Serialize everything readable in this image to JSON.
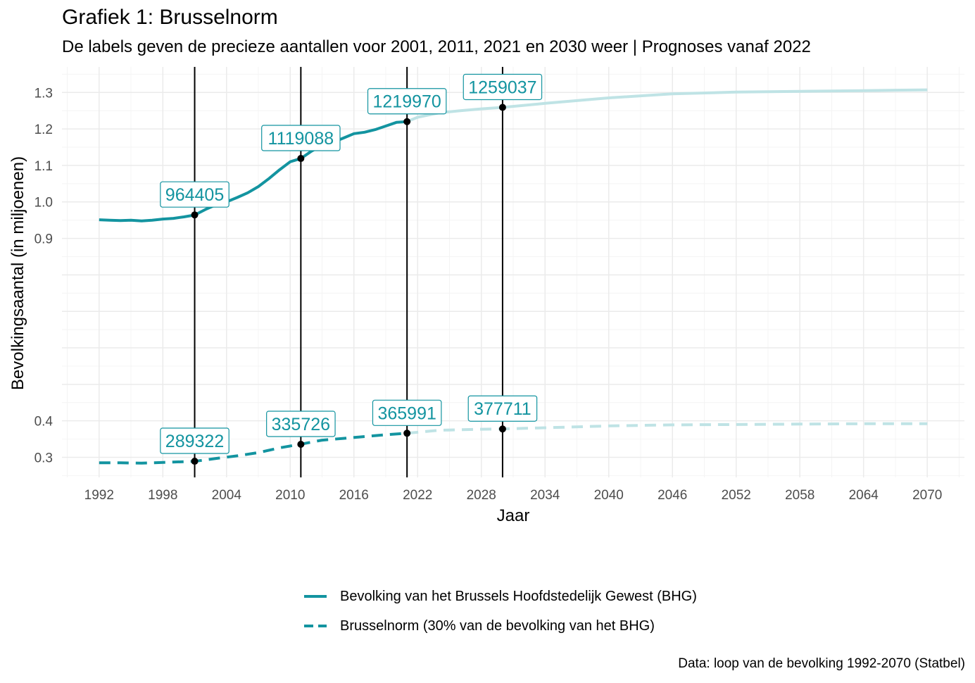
{
  "colors": {
    "series": "#1394a0",
    "forecast": "#bfe3e5",
    "markers": "#000000",
    "grid_major": "#ebebeb",
    "grid_minor": "#f4f4f4",
    "axis_text": "#4d4d4d"
  },
  "chart_data": {
    "type": "line",
    "title": "Grafiek 1: Brusselnorm",
    "subtitle": "De labels geven de precieze aantallen voor 2001, 2011, 2021 en 2030 weer | Prognoses vanaf 2022",
    "xlabel": "Jaar",
    "ylabel": "Bevolkingsaantal (in miljoenen)",
    "caption": "Data: loop van de bevolking 1992-2070 (Statbel)",
    "xlim": [
      1988.5,
      2073.5
    ],
    "ylim": [
      0.245,
      1.37
    ],
    "x_ticks": [
      1992,
      1998,
      2004,
      2010,
      2016,
      2022,
      2028,
      2034,
      2040,
      2046,
      2052,
      2058,
      2064,
      2070
    ],
    "x_tick_labels": [
      "1992",
      "1998",
      "2004",
      "2010",
      "2016",
      "2022",
      "2028",
      "2034",
      "2040",
      "2046",
      "2052",
      "2058",
      "2064",
      "2070"
    ],
    "y_ticks": [
      0.3,
      0.4,
      0.9,
      1.0,
      1.1,
      1.2,
      1.3
    ],
    "y_tick_labels": [
      "0.3",
      "0.4",
      "0.9",
      "1.0",
      "1.1",
      "1.2",
      "1.3"
    ],
    "grid": true,
    "legend_position": "bottom",
    "vlines": [
      2001,
      2011,
      2021,
      2030
    ],
    "series": [
      {
        "name": "Bevolking van het Brussels Hoofdstedelijk Gewest (BHG)",
        "dash": "solid",
        "observed": {
          "x": [
            1992,
            1993,
            1994,
            1995,
            1996,
            1997,
            1998,
            1999,
            2000,
            2001,
            2002,
            2003,
            2004,
            2005,
            2006,
            2007,
            2008,
            2009,
            2010,
            2011,
            2012,
            2013,
            2014,
            2015,
            2016,
            2017,
            2018,
            2019,
            2020,
            2021
          ],
          "y": [
            0.951,
            0.95,
            0.949,
            0.95,
            0.948,
            0.95,
            0.953,
            0.955,
            0.959,
            0.964,
            0.979,
            0.992,
            1.0,
            1.012,
            1.025,
            1.042,
            1.064,
            1.088,
            1.11,
            1.119,
            1.139,
            1.155,
            1.163,
            1.175,
            1.187,
            1.191,
            1.198,
            1.208,
            1.218,
            1.22
          ]
        },
        "forecast": {
          "x": [
            2021,
            2022,
            2024,
            2026,
            2028,
            2030,
            2034,
            2040,
            2046,
            2052,
            2058,
            2064,
            2070
          ],
          "y": [
            1.22,
            1.232,
            1.244,
            1.25,
            1.255,
            1.259,
            1.27,
            1.285,
            1.296,
            1.301,
            1.303,
            1.305,
            1.307
          ]
        },
        "labels": [
          {
            "x": 2001,
            "y": 0.964405,
            "text": "964405"
          },
          {
            "x": 2011,
            "y": 1.119088,
            "text": "1119088"
          },
          {
            "x": 2021,
            "y": 1.21997,
            "text": "1219970"
          },
          {
            "x": 2030,
            "y": 1.259037,
            "text": "1259037"
          }
        ]
      },
      {
        "name": "Brusselnorm (30% van de bevolking van het BHG)",
        "dash": "dashed",
        "observed": {
          "x": [
            1992,
            1994,
            1996,
            1998,
            2000,
            2001,
            2003,
            2005,
            2007,
            2009,
            2011,
            2013,
            2015,
            2017,
            2019,
            2021
          ],
          "y": [
            0.285,
            0.285,
            0.284,
            0.286,
            0.288,
            0.289,
            0.297,
            0.304,
            0.313,
            0.326,
            0.336,
            0.347,
            0.352,
            0.357,
            0.362,
            0.366
          ]
        },
        "forecast": {
          "x": [
            2021,
            2024,
            2028,
            2030,
            2034,
            2040,
            2046,
            2052,
            2058,
            2064,
            2070
          ],
          "y": [
            0.366,
            0.374,
            0.377,
            0.378,
            0.381,
            0.386,
            0.389,
            0.39,
            0.391,
            0.392,
            0.392
          ]
        },
        "labels": [
          {
            "x": 2001,
            "y": 0.289322,
            "text": "289322"
          },
          {
            "x": 2011,
            "y": 0.335726,
            "text": "335726"
          },
          {
            "x": 2021,
            "y": 0.365991,
            "text": "365991"
          },
          {
            "x": 2030,
            "y": 0.377711,
            "text": "377711"
          }
        ]
      }
    ]
  }
}
